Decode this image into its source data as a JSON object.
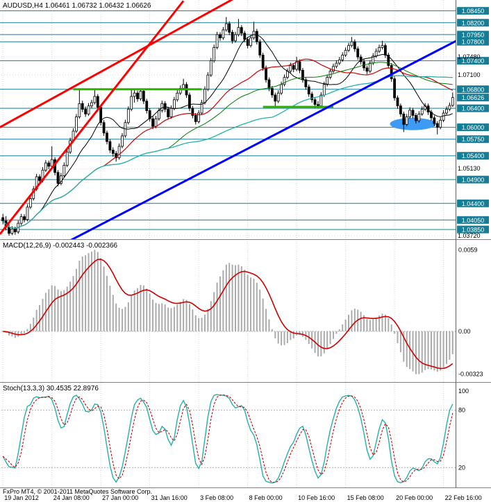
{
  "window": {
    "title": "AUDUSD,H4 1.06461 1.06732 1.06432 1.06626",
    "copyright": "FxPro MT4, © 2001-2011 MetaQuotes Software Corp."
  },
  "colors": {
    "background": "#FFFFFF",
    "grid": "#D4D4D4",
    "bull": "#FFFFFF",
    "bear": "#000000",
    "candle_outline": "#000000",
    "level_line": "#157E96",
    "level_label_text": "#FFFFFF",
    "trend_red": "#FF0000",
    "trend_blue": "#0000FF",
    "support_green": "#2DB200",
    "ellipse_blue": "#3E9BF3",
    "macd_hist": "#ABABAB",
    "macd_signal": "#CC0000",
    "stoch_main": "#20B2AA",
    "stoch_signal": "#CC0000",
    "indicator_level": "#B0B0B0",
    "panel_border": "#808080",
    "scale_text": "#000000"
  },
  "time_axis": {
    "labels": [
      "19 Jan 2012",
      "24 Jan 08:00",
      "27 Jan 00:00",
      "31 Jan 16:00",
      "3 Feb 08:00",
      "8 Feb 00:00",
      "10 Feb 16:00",
      "15 Feb 08:00",
      "20 Feb 00:00",
      "22 Feb 16:00"
    ]
  },
  "chart_data": [
    {
      "type": "candlestick",
      "symbol": "AUDUSD",
      "timeframe": "H4",
      "title": "AUDUSD,H4",
      "last_candle": {
        "open": 1.06461,
        "high": 1.06732,
        "low": 1.06432,
        "close": 1.06626
      },
      "ylim": [
        1.0366,
        1.0862
      ],
      "price_levels": [
        {
          "price": 1.0845,
          "label": "1.08450"
        },
        {
          "price": 1.082,
          "label": "1.08200"
        },
        {
          "price": 1.0795,
          "label": "1.07950"
        },
        {
          "price": 1.078,
          "label": "1.07800"
        },
        {
          "price": 1.074,
          "label": "1.07400"
        },
        {
          "price": 1.068,
          "label": "1.06800"
        },
        {
          "price": 1.064,
          "label": "1.06400"
        },
        {
          "price": 1.06,
          "label": "1.06000"
        },
        {
          "price": 1.0575,
          "label": "1.05750"
        },
        {
          "price": 1.054,
          "label": "1.05400"
        },
        {
          "price": 1.049,
          "label": "1.04900"
        },
        {
          "price": 1.044,
          "label": "1.04400"
        },
        {
          "price": 1.0405,
          "label": "1.04050"
        },
        {
          "price": 1.0385,
          "label": "1.03850"
        }
      ],
      "axis_ticks": [
        {
          "price": 1.0748,
          "label": "1.07480"
        },
        {
          "price": 1.071,
          "label": "1.07100"
        },
        {
          "price": 1.0513,
          "label": "1.05130"
        },
        {
          "price": 1.0372,
          "label": "1.03720"
        }
      ],
      "current_price": {
        "value": 1.06626,
        "label": "1.06626"
      },
      "support_segments": [
        {
          "price": 1.068,
          "i1": 23,
          "i2": 65,
          "color": "#2DB200",
          "width": 3
        },
        {
          "price": 1.0643,
          "i1": 85,
          "i2": 108,
          "color": "#2DB200",
          "width": 3
        }
      ],
      "trend_lines": [
        {
          "name": "trendline-red-upper",
          "color": "#FF0000",
          "width": 3,
          "i1": -1,
          "p1": 1.06,
          "i2": 75,
          "p2": 1.0869
        },
        {
          "name": "trendline-red-lower",
          "color": "#FF0000",
          "width": 3,
          "i1": -1,
          "p1": 1.0375,
          "i2": 59,
          "p2": 1.0866
        },
        {
          "name": "trendline-blue-support",
          "color": "#0000FF",
          "width": 3,
          "i1": 22,
          "p1": 1.0362,
          "i2": 150,
          "p2": 1.0788
        }
      ],
      "ellipse": {
        "center_i": 134,
        "price": 1.0607,
        "rx_i": 7.5,
        "ry_p": 0.0013,
        "color": "#3E9BF3"
      },
      "moving_averages": [
        {
          "period": 13,
          "color": "#000000",
          "width": 1
        },
        {
          "period": 34,
          "color": "#CC0000",
          "width": 1.2
        },
        {
          "period": 55,
          "color": "#007A00",
          "width": 1
        },
        {
          "period": 89,
          "color": "#20B2AA",
          "width": 1.3
        }
      ],
      "ohlc": [
        [
          1.041,
          1.0418,
          1.0396,
          1.0403
        ],
        [
          1.0403,
          1.0413,
          1.0383,
          1.039
        ],
        [
          1.039,
          1.0396,
          1.0372,
          1.0377
        ],
        [
          1.0377,
          1.0392,
          1.0373,
          1.0386
        ],
        [
          1.0386,
          1.0391,
          1.0374,
          1.038
        ],
        [
          1.038,
          1.0404,
          1.0376,
          1.0398
        ],
        [
          1.0398,
          1.0418,
          1.0394,
          1.0412
        ],
        [
          1.0412,
          1.0417,
          1.04,
          1.0406
        ],
        [
          1.0406,
          1.0438,
          1.0402,
          1.0432
        ],
        [
          1.0432,
          1.0456,
          1.0428,
          1.045
        ],
        [
          1.045,
          1.0476,
          1.0446,
          1.047
        ],
        [
          1.047,
          1.0502,
          1.0466,
          1.0496
        ],
        [
          1.0496,
          1.0501,
          1.0482,
          1.0488
        ],
        [
          1.0488,
          1.0516,
          1.0484,
          1.051
        ],
        [
          1.051,
          1.0531,
          1.0506,
          1.0525
        ],
        [
          1.0525,
          1.053,
          1.0512,
          1.0518
        ],
        [
          1.0518,
          1.056,
          1.0514,
          1.0532
        ],
        [
          1.0532,
          1.0537,
          1.0499,
          1.0505
        ],
        [
          1.0505,
          1.051,
          1.0476,
          1.0482
        ],
        [
          1.0482,
          1.0504,
          1.0478,
          1.0498
        ],
        [
          1.0498,
          1.0526,
          1.0494,
          1.052
        ],
        [
          1.052,
          1.0554,
          1.0516,
          1.0548
        ],
        [
          1.0548,
          1.0578,
          1.0544,
          1.0572
        ],
        [
          1.0572,
          1.0598,
          1.0568,
          1.0592
        ],
        [
          1.0592,
          1.0628,
          1.0588,
          1.0622
        ],
        [
          1.0622,
          1.0682,
          1.0618,
          1.065
        ],
        [
          1.065,
          1.0656,
          1.0632,
          1.0638
        ],
        [
          1.0638,
          1.0644,
          1.0622,
          1.0628
        ],
        [
          1.0628,
          1.0651,
          1.0624,
          1.0645
        ],
        [
          1.0645,
          1.0658,
          1.064,
          1.0652
        ],
        [
          1.0652,
          1.068,
          1.0648,
          1.0665
        ],
        [
          1.0665,
          1.067,
          1.0636,
          1.0642
        ],
        [
          1.0642,
          1.0647,
          1.0604,
          1.061
        ],
        [
          1.061,
          1.0615,
          1.0582,
          1.0588
        ],
        [
          1.0588,
          1.0593,
          1.0564,
          1.057
        ],
        [
          1.057,
          1.0575,
          1.0546,
          1.0552
        ],
        [
          1.0552,
          1.0558,
          1.0538,
          1.0545
        ],
        [
          1.0545,
          1.055,
          1.0528,
          1.0536
        ],
        [
          1.0536,
          1.0566,
          1.0532,
          1.056
        ],
        [
          1.056,
          1.0588,
          1.0556,
          1.0582
        ],
        [
          1.0582,
          1.0616,
          1.0578,
          1.061
        ],
        [
          1.061,
          1.0644,
          1.0606,
          1.0638
        ],
        [
          1.0638,
          1.068,
          1.0634,
          1.0665
        ],
        [
          1.0665,
          1.0678,
          1.0652,
          1.0672
        ],
        [
          1.0672,
          1.0677,
          1.0654,
          1.066
        ],
        [
          1.066,
          1.0682,
          1.0656,
          1.0676
        ],
        [
          1.0676,
          1.0681,
          1.0649,
          1.0655
        ],
        [
          1.0655,
          1.066,
          1.0629,
          1.0635
        ],
        [
          1.0635,
          1.064,
          1.0612,
          1.0618
        ],
        [
          1.0618,
          1.0623,
          1.0596,
          1.0602
        ],
        [
          1.0602,
          1.0624,
          1.0598,
          1.0618
        ],
        [
          1.0618,
          1.0641,
          1.0614,
          1.0635
        ],
        [
          1.0635,
          1.0656,
          1.0631,
          1.065
        ],
        [
          1.065,
          1.0655,
          1.0632,
          1.0638
        ],
        [
          1.0638,
          1.0643,
          1.0616,
          1.0622
        ],
        [
          1.0622,
          1.0646,
          1.0618,
          1.064
        ],
        [
          1.064,
          1.0664,
          1.0636,
          1.0658
        ],
        [
          1.0658,
          1.0678,
          1.0654,
          1.0672
        ],
        [
          1.0672,
          1.0688,
          1.0668,
          1.0682
        ],
        [
          1.0682,
          1.0702,
          1.0678,
          1.069
        ],
        [
          1.069,
          1.0695,
          1.0662,
          1.0668
        ],
        [
          1.0668,
          1.0673,
          1.0634,
          1.064
        ],
        [
          1.064,
          1.0645,
          1.0619,
          1.0625
        ],
        [
          1.0625,
          1.063,
          1.0606,
          1.0612
        ],
        [
          1.0612,
          1.0636,
          1.0608,
          1.063
        ],
        [
          1.063,
          1.0658,
          1.0626,
          1.0652
        ],
        [
          1.0652,
          1.0686,
          1.0648,
          1.068
        ],
        [
          1.068,
          1.0716,
          1.0676,
          1.071
        ],
        [
          1.071,
          1.0746,
          1.0706,
          1.074
        ],
        [
          1.074,
          1.0774,
          1.0736,
          1.0768
        ],
        [
          1.0768,
          1.0801,
          1.0764,
          1.0795
        ],
        [
          1.0795,
          1.08,
          1.0782,
          1.0788
        ],
        [
          1.0788,
          1.0811,
          1.0784,
          1.0805
        ],
        [
          1.0805,
          1.0832,
          1.0801,
          1.0818
        ],
        [
          1.0818,
          1.0823,
          1.0794,
          1.08
        ],
        [
          1.08,
          1.0805,
          1.0776,
          1.0782
        ],
        [
          1.0782,
          1.0801,
          1.0778,
          1.0795
        ],
        [
          1.0795,
          1.0828,
          1.0791,
          1.081
        ],
        [
          1.081,
          1.0815,
          1.0792,
          1.0798
        ],
        [
          1.0798,
          1.0803,
          1.0779,
          1.0785
        ],
        [
          1.0785,
          1.079,
          1.0766,
          1.0772
        ],
        [
          1.0772,
          1.0794,
          1.0768,
          1.0788
        ],
        [
          1.0788,
          1.0822,
          1.0784,
          1.0802
        ],
        [
          1.0802,
          1.0807,
          1.0774,
          1.078
        ],
        [
          1.078,
          1.0785,
          1.0746,
          1.0752
        ],
        [
          1.0752,
          1.0757,
          1.0719,
          1.0725
        ],
        [
          1.0725,
          1.073,
          1.0694,
          1.07
        ],
        [
          1.07,
          1.0705,
          1.0676,
          1.0682
        ],
        [
          1.0682,
          1.0687,
          1.0662,
          1.0668
        ],
        [
          1.0668,
          1.0673,
          1.0642,
          1.0655
        ],
        [
          1.0655,
          1.0678,
          1.0651,
          1.0672
        ],
        [
          1.0672,
          1.0696,
          1.0668,
          1.069
        ],
        [
          1.069,
          1.0711,
          1.0686,
          1.0705
        ],
        [
          1.0705,
          1.0724,
          1.0701,
          1.0718
        ],
        [
          1.0718,
          1.0736,
          1.0714,
          1.073
        ],
        [
          1.073,
          1.0735,
          1.0716,
          1.0722
        ],
        [
          1.0722,
          1.0748,
          1.0718,
          1.0738
        ],
        [
          1.0738,
          1.0743,
          1.0714,
          1.072
        ],
        [
          1.072,
          1.0725,
          1.0694,
          1.07
        ],
        [
          1.07,
          1.0705,
          1.0679,
          1.0685
        ],
        [
          1.0685,
          1.069,
          1.0664,
          1.067
        ],
        [
          1.067,
          1.0675,
          1.0652,
          1.0658
        ],
        [
          1.0658,
          1.0663,
          1.064,
          1.0648
        ],
        [
          1.0648,
          1.0655,
          1.064,
          1.0645
        ],
        [
          1.0645,
          1.0674,
          1.0641,
          1.0668
        ],
        [
          1.0668,
          1.0696,
          1.0664,
          1.069
        ],
        [
          1.069,
          1.0711,
          1.0686,
          1.0705
        ],
        [
          1.0705,
          1.0724,
          1.0701,
          1.0718
        ],
        [
          1.0718,
          1.0734,
          1.0714,
          1.0728
        ],
        [
          1.0728,
          1.0741,
          1.0724,
          1.0735
        ],
        [
          1.0735,
          1.0748,
          1.0731,
          1.0742
        ],
        [
          1.0742,
          1.0758,
          1.0738,
          1.0752
        ],
        [
          1.0752,
          1.0768,
          1.0748,
          1.0762
        ],
        [
          1.0762,
          1.0778,
          1.0758,
          1.0772
        ],
        [
          1.0772,
          1.079,
          1.0768,
          1.078
        ],
        [
          1.078,
          1.0785,
          1.0759,
          1.0765
        ],
        [
          1.0765,
          1.077,
          1.0742,
          1.0748
        ],
        [
          1.0748,
          1.0753,
          1.0732,
          1.0738
        ],
        [
          1.0738,
          1.0743,
          1.0719,
          1.0725
        ],
        [
          1.0725,
          1.073,
          1.0712,
          1.0718
        ],
        [
          1.0718,
          1.0741,
          1.0714,
          1.0735
        ],
        [
          1.0735,
          1.0756,
          1.0731,
          1.075
        ],
        [
          1.075,
          1.0766,
          1.0746,
          1.076
        ],
        [
          1.076,
          1.0774,
          1.0756,
          1.0768
        ],
        [
          1.0768,
          1.0782,
          1.0764,
          1.0772
        ],
        [
          1.0772,
          1.0777,
          1.0746,
          1.0752
        ],
        [
          1.0752,
          1.0757,
          1.0724,
          1.073
        ],
        [
          1.073,
          1.0735,
          1.0696,
          1.0702
        ],
        [
          1.0702,
          1.0707,
          1.0656,
          1.0662
        ],
        [
          1.0662,
          1.0667,
          1.0639,
          1.0645
        ],
        [
          1.0645,
          1.065,
          1.0622,
          1.0628
        ],
        [
          1.0628,
          1.0633,
          1.059,
          1.0606
        ],
        [
          1.0606,
          1.0628,
          1.0602,
          1.0622
        ],
        [
          1.0622,
          1.0642,
          1.0618,
          1.0636
        ],
        [
          1.0636,
          1.0641,
          1.0619,
          1.0625
        ],
        [
          1.0625,
          1.063,
          1.0608,
          1.0614
        ],
        [
          1.0614,
          1.0634,
          1.061,
          1.0628
        ],
        [
          1.0628,
          1.0644,
          1.0624,
          1.0638
        ],
        [
          1.0638,
          1.0651,
          1.0634,
          1.0645
        ],
        [
          1.0645,
          1.065,
          1.0626,
          1.0632
        ],
        [
          1.0632,
          1.0637,
          1.0614,
          1.062
        ],
        [
          1.062,
          1.0625,
          1.0602,
          1.0608
        ],
        [
          1.0608,
          1.0613,
          1.0585,
          1.06
        ],
        [
          1.06,
          1.0621,
          1.0596,
          1.0615
        ],
        [
          1.0615,
          1.0636,
          1.0611,
          1.063
        ],
        [
          1.063,
          1.0644,
          1.0626,
          1.0638
        ],
        [
          1.0638,
          1.0652,
          1.0634,
          1.0646
        ],
        [
          1.06461,
          1.06732,
          1.06432,
          1.06626
        ]
      ]
    },
    {
      "type": "macd",
      "label": "MACD(12,26,9) -0.002443 -0.002366",
      "params": [
        12,
        26,
        9
      ],
      "current_values": [
        -0.002443,
        -0.002366
      ],
      "scale_labels": {
        "max": "0.0059",
        "zero": "0.00",
        "min": "-0.00323"
      }
    },
    {
      "type": "stochastic",
      "label": "Stoch(13,3,3) 30.4535 22.8976",
      "params": [
        13,
        3,
        3
      ],
      "current_values": [
        30.4535,
        22.8976
      ],
      "levels": [
        80,
        20
      ],
      "scale_labels": [
        {
          "value": 100,
          "label": "100"
        },
        {
          "value": 80,
          "label": "80"
        },
        {
          "value": 20,
          "label": "20"
        }
      ]
    }
  ]
}
